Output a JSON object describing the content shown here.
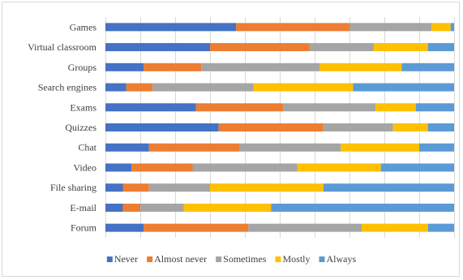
{
  "chart_data": {
    "type": "bar",
    "orientation": "horizontal",
    "stacked": "percent",
    "title": "",
    "xlabel": "",
    "ylabel": "",
    "xlim": [
      0,
      100
    ],
    "grid": true,
    "legend_position": "bottom",
    "categories": [
      "Games",
      "Virtual classroom",
      "Groups",
      "Search engines",
      "Exams",
      "Quizzes",
      "Chat",
      "Video",
      "File sharing",
      "E-mail",
      "Forum"
    ],
    "series": [
      {
        "name": "Never",
        "color": "#4472C4",
        "values": [
          37.5,
          30.0,
          11.0,
          6.0,
          26.0,
          32.5,
          12.5,
          7.5,
          5.0,
          5.0,
          11.0
        ]
      },
      {
        "name": "Almost never",
        "color": "#ED7D31",
        "values": [
          32.5,
          28.5,
          16.5,
          7.5,
          25.0,
          30.0,
          26.0,
          17.5,
          7.5,
          5.0,
          30.0
        ]
      },
      {
        "name": "Sometimes",
        "color": "#A5A5A5",
        "values": [
          23.5,
          18.5,
          34.0,
          29.0,
          26.5,
          20.0,
          29.0,
          30.0,
          17.5,
          12.5,
          32.5
        ]
      },
      {
        "name": "Mostly",
        "color": "#FFC000",
        "values": [
          5.5,
          15.5,
          23.5,
          28.5,
          11.5,
          10.0,
          22.5,
          24.0,
          32.5,
          25.0,
          19.0
        ]
      },
      {
        "name": "Always",
        "color": "#5B9BD5",
        "values": [
          1.0,
          7.5,
          15.0,
          29.0,
          11.0,
          7.5,
          10.0,
          21.0,
          37.5,
          52.5,
          7.5
        ]
      }
    ]
  }
}
